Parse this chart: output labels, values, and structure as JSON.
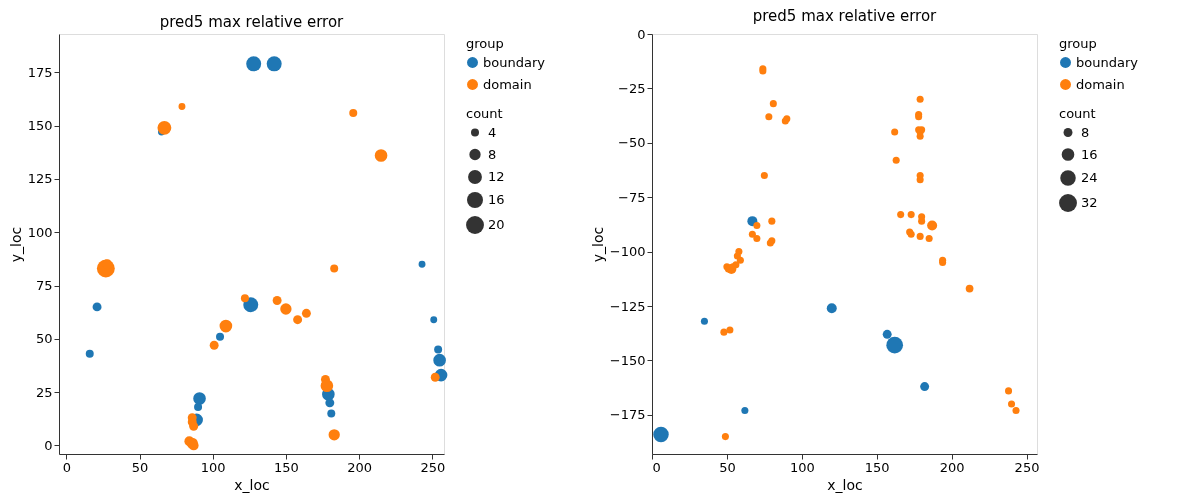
{
  "chart_data": [
    {
      "type": "bubble",
      "title": "pred5 max relative error",
      "xlabel": "x_loc",
      "ylabel": "y_loc",
      "legend_title": [
        "group",
        "count"
      ],
      "legend": "right",
      "grid": false,
      "marker": "circle",
      "xlim": [
        -5,
        258
      ],
      "xticks": [
        0,
        50,
        100,
        150,
        200,
        250
      ],
      "ylim": [
        -4,
        193
      ],
      "yticks": [
        0,
        25,
        50,
        75,
        100,
        125,
        150,
        175
      ],
      "size_legend": [
        4,
        8,
        12,
        16,
        20
      ],
      "series": [
        {
          "name": "boundary",
          "color": "#1f77b4",
          "x": [
            128,
            142,
            65,
            21,
            16,
            126,
            105,
            91,
            90,
            89,
            243,
            251,
            254,
            255,
            256,
            179,
            180,
            181
          ],
          "values": [
            179,
            179,
            147,
            65,
            43,
            66,
            51,
            22,
            18,
            12,
            85,
            59,
            45,
            40,
            33,
            24,
            20,
            15
          ],
          "sizes": [
            14,
            14,
            3,
            5,
            4,
            14,
            4,
            10,
            4,
            10,
            3,
            3,
            4,
            10,
            10,
            10,
            5,
            4
          ]
        },
        {
          "name": "domain",
          "color": "#ff7f0e",
          "x": [
            67,
            79,
            196,
            215,
            27,
            28,
            183,
            122,
            144,
            150,
            158,
            164,
            109,
            101,
            86,
            86,
            87,
            84,
            86,
            87,
            177,
            178,
            183,
            252
          ],
          "values": [
            149,
            159,
            156,
            136,
            83,
            85,
            83,
            69,
            68,
            64,
            59,
            62,
            56,
            47,
            13,
            11,
            9,
            2,
            1,
            0,
            31,
            28,
            5,
            32
          ],
          "sizes": [
            12,
            3,
            4,
            10,
            20,
            6,
            4,
            4,
            5,
            8,
            5,
            5,
            10,
            5,
            5,
            5,
            5,
            6,
            8,
            6,
            5,
            10,
            8,
            5
          ]
        }
      ]
    },
    {
      "type": "bubble",
      "title": "pred5 max relative error",
      "xlabel": "x_loc",
      "ylabel": "y_loc",
      "legend_title": [
        "group",
        "count"
      ],
      "legend": "right",
      "grid": false,
      "marker": "circle",
      "xlim": [
        0,
        257
      ],
      "xticks": [
        0,
        50,
        100,
        150,
        200,
        250
      ],
      "ylim": [
        -193,
        0
      ],
      "yticks": [
        -175,
        -150,
        -125,
        -100,
        -75,
        -50,
        -25,
        0
      ],
      "size_legend": [
        8,
        16,
        24,
        32
      ],
      "series": [
        {
          "name": "boundary",
          "color": "#1f77b4",
          "x": [
            67,
            6,
            35,
            62,
            120,
            157,
            162,
            182
          ],
          "values": [
            -86,
            -184,
            -132,
            -173,
            -126,
            -138,
            -143,
            -162
          ],
          "sizes": [
            10,
            24,
            5,
            5,
            10,
            8,
            28,
            8
          ]
        },
        {
          "name": "domain",
          "color": "#ff7f0e",
          "x": [
            74,
            74,
            81,
            78,
            90,
            89,
            75,
            80,
            70,
            67,
            70,
            80,
            79,
            58,
            57,
            59,
            56,
            54,
            50,
            51,
            53,
            162,
            163,
            179,
            178,
            178,
            178,
            180,
            179,
            179,
            179,
            179,
            166,
            173,
            180,
            180,
            187,
            172,
            173,
            179,
            185,
            194,
            194,
            212,
            238,
            240,
            243,
            48,
            52,
            49
          ],
          "values": [
            -16,
            -17,
            -32,
            -38,
            -39,
            -40,
            -65,
            -86,
            -88,
            -92,
            -94,
            -95,
            -96,
            -100,
            -102,
            -104,
            -106,
            -107,
            -107,
            -108,
            -108,
            -45,
            -58,
            -30,
            -37,
            -38,
            -44,
            -44,
            -45,
            -47,
            -65,
            -67,
            -83,
            -83,
            -84,
            -86,
            -88,
            -91,
            -92,
            -93,
            -94,
            -104,
            -105,
            -117,
            -164,
            -170,
            -173,
            -137,
            -136,
            -185
          ],
          "sizes": [
            5,
            5,
            5,
            5,
            5,
            5,
            5,
            5,
            5,
            5,
            5,
            5,
            5,
            5,
            5,
            5,
            5,
            5,
            5,
            5,
            10,
            5,
            5,
            5,
            5,
            5,
            5,
            5,
            5,
            5,
            5,
            5,
            5,
            5,
            5,
            5,
            10,
            5,
            5,
            5,
            5,
            5,
            5,
            6,
            5,
            5,
            5,
            5,
            5,
            5
          ]
        }
      ]
    }
  ]
}
